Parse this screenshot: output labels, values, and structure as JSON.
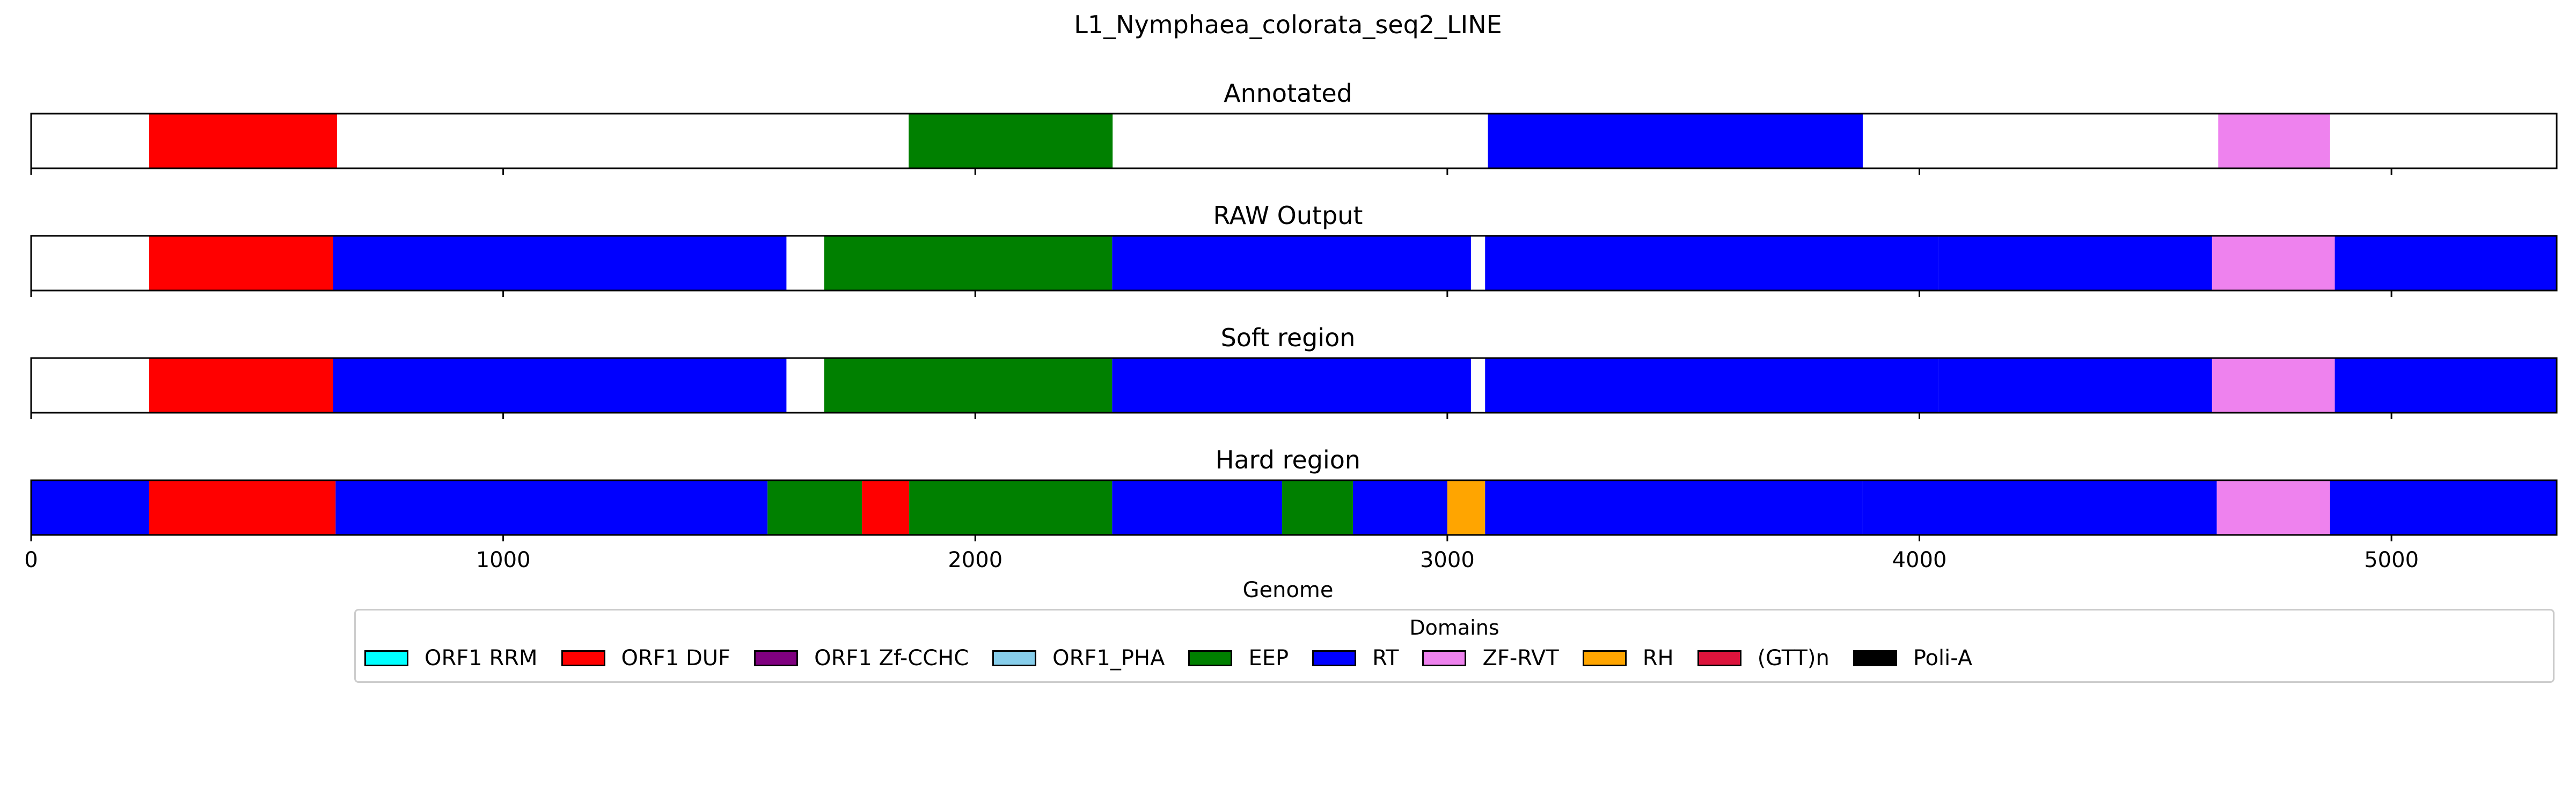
{
  "chart_data": {
    "type": "bar",
    "title": "L1_Nymphaea_colorata_seq2_LINE",
    "xlabel": "Genome",
    "xlim": [
      0,
      5350
    ],
    "xticks": [
      0,
      1000,
      2000,
      3000,
      4000,
      5000
    ],
    "tracks": [
      {
        "name": "Annotated",
        "segments": [
          {
            "domain": "ORF1 DUF",
            "start": 250,
            "end": 648
          },
          {
            "domain": "EEP",
            "start": 1859,
            "end": 2291
          },
          {
            "domain": "RT",
            "start": 3086,
            "end": 3880
          },
          {
            "domain": "ZF-RVT",
            "start": 4633,
            "end": 4870
          }
        ]
      },
      {
        "name": "RAW Output",
        "segments": [
          {
            "domain": "ORF1 DUF",
            "start": 250,
            "end": 640
          },
          {
            "domain": "RT",
            "start": 640,
            "end": 1600
          },
          {
            "domain": "EEP",
            "start": 1680,
            "end": 2290
          },
          {
            "domain": "RT",
            "start": 2290,
            "end": 3050
          },
          {
            "domain": "RT",
            "start": 3080,
            "end": 4040
          },
          {
            "domain": "RT",
            "start": 4040,
            "end": 4620
          },
          {
            "domain": "ZF-RVT",
            "start": 4620,
            "end": 4880
          },
          {
            "domain": "RT",
            "start": 4880,
            "end": 5350
          }
        ]
      },
      {
        "name": "Soft region",
        "segments": [
          {
            "domain": "ORF1 DUF",
            "start": 250,
            "end": 640
          },
          {
            "domain": "RT",
            "start": 640,
            "end": 1600
          },
          {
            "domain": "EEP",
            "start": 1680,
            "end": 2290
          },
          {
            "domain": "RT",
            "start": 2290,
            "end": 3050
          },
          {
            "domain": "RT",
            "start": 3080,
            "end": 4040
          },
          {
            "domain": "RT",
            "start": 4040,
            "end": 4620
          },
          {
            "domain": "ZF-RVT",
            "start": 4620,
            "end": 4880
          },
          {
            "domain": "RT",
            "start": 4880,
            "end": 5350
          }
        ]
      },
      {
        "name": "Hard region",
        "segments": [
          {
            "domain": "RT",
            "start": 0,
            "end": 250
          },
          {
            "domain": "ORF1 DUF",
            "start": 250,
            "end": 645
          },
          {
            "domain": "RT",
            "start": 645,
            "end": 1560
          },
          {
            "domain": "EEP",
            "start": 1560,
            "end": 1760
          },
          {
            "domain": "ORF1 DUF",
            "start": 1760,
            "end": 1860
          },
          {
            "domain": "EEP",
            "start": 1860,
            "end": 2290
          },
          {
            "domain": "RT",
            "start": 2290,
            "end": 2650
          },
          {
            "domain": "EEP",
            "start": 2650,
            "end": 2800
          },
          {
            "domain": "RT",
            "start": 2800,
            "end": 3000
          },
          {
            "domain": "RH",
            "start": 3000,
            "end": 3080
          },
          {
            "domain": "RT",
            "start": 3080,
            "end": 3880
          },
          {
            "domain": "RT",
            "start": 3880,
            "end": 4630
          },
          {
            "domain": "ZF-RVT",
            "start": 4630,
            "end": 4870
          },
          {
            "domain": "RT",
            "start": 4870,
            "end": 5350
          }
        ]
      }
    ],
    "legend": {
      "title": "Domains",
      "placement": "bottom-center",
      "items": [
        {
          "label": "ORF1 RRM",
          "color": "#00ffff"
        },
        {
          "label": "ORF1 DUF",
          "color": "#ff0000"
        },
        {
          "label": "ORF1 Zf-CCHC",
          "color": "#800080"
        },
        {
          "label": "ORF1_PHA",
          "color": "#87ceeb"
        },
        {
          "label": "EEP",
          "color": "#008000"
        },
        {
          "label": "RT",
          "color": "#0000ff"
        },
        {
          "label": "ZF-RVT",
          "color": "#ee82ee"
        },
        {
          "label": "RH",
          "color": "#ffa500"
        },
        {
          "label": "(GTT)n",
          "color": "#dc143c"
        },
        {
          "label": "Poli-A",
          "color": "#000000"
        }
      ]
    }
  }
}
